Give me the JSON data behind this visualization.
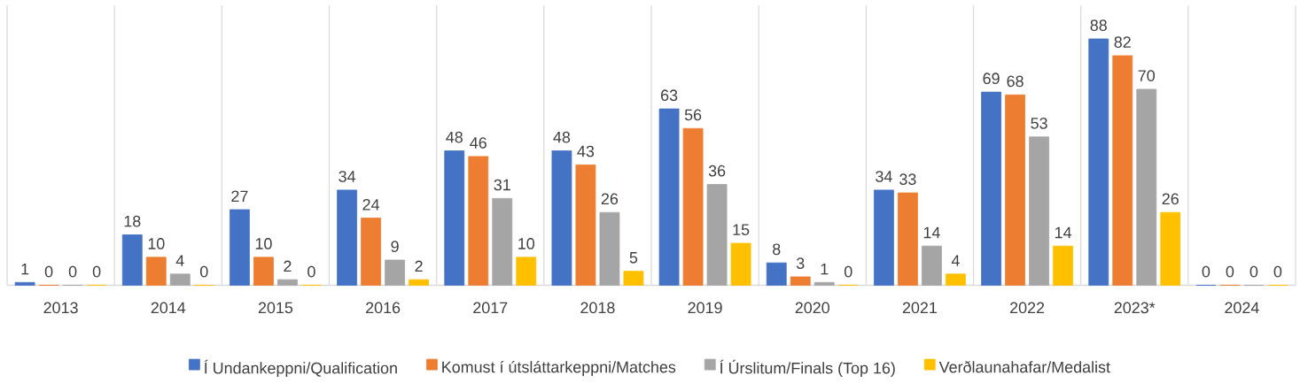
{
  "chart_data": {
    "type": "bar",
    "categories": [
      "2013",
      "2014",
      "2015",
      "2016",
      "2017",
      "2018",
      "2019",
      "2020",
      "2021",
      "2022",
      "2023*",
      "2024"
    ],
    "series": [
      {
        "name": "Í Undankeppni/Qualification",
        "color": "#4472c4",
        "values": [
          1,
          18,
          27,
          34,
          48,
          48,
          63,
          8,
          34,
          69,
          88,
          0
        ]
      },
      {
        "name": "Komust í útsláttarkeppni/Matches",
        "color": "#ed7d31",
        "values": [
          0,
          10,
          10,
          24,
          46,
          43,
          56,
          3,
          33,
          68,
          82,
          0
        ]
      },
      {
        "name": "Í Úrslitum/Finals (Top 16)",
        "color": "#a5a5a5",
        "values": [
          0,
          4,
          2,
          9,
          31,
          26,
          36,
          1,
          14,
          53,
          70,
          0
        ]
      },
      {
        "name": "Verðlaunahafar/Medalist",
        "color": "#ffc000",
        "values": [
          0,
          0,
          0,
          2,
          10,
          5,
          15,
          0,
          4,
          14,
          26,
          0
        ]
      }
    ],
    "ylim": [
      0,
      100
    ],
    "grid": true,
    "legend": "bottom",
    "data_labels": true
  }
}
